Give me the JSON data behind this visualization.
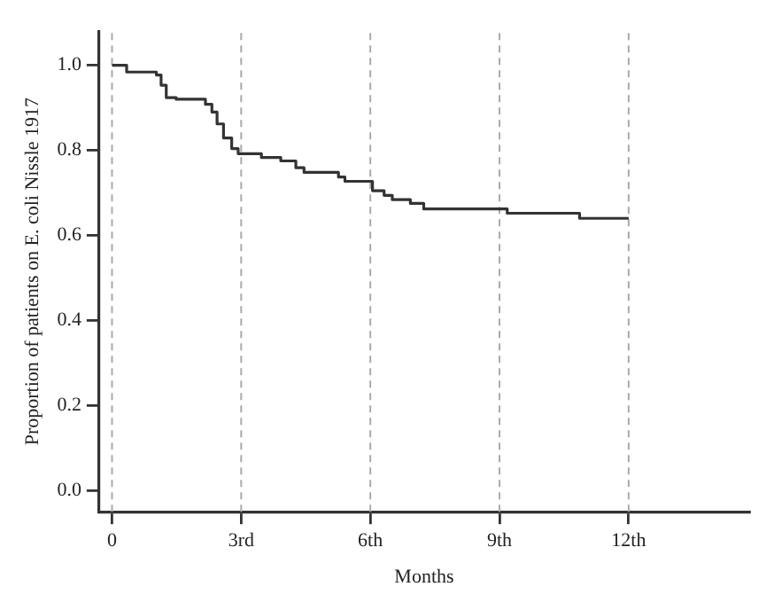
{
  "chart_data": {
    "type": "step",
    "xlabel": "Months",
    "ylabel": "Proportion of patients on E. coli Nissle 1917",
    "x": [
      0,
      0.34,
      1.03,
      1.14,
      1.26,
      1.49,
      2.17,
      2.32,
      2.44,
      2.59,
      2.78,
      2.93,
      3.47,
      3.92,
      4.27,
      4.46,
      5.26,
      5.41,
      6.05,
      6.32,
      6.51,
      6.93,
      7.24,
      9.18,
      10.86,
      12
    ],
    "series": [
      {
        "color": "#333333",
        "values": [
          1.0,
          0.984,
          0.977,
          0.953,
          0.924,
          0.92,
          0.908,
          0.89,
          0.862,
          0.829,
          0.804,
          0.792,
          0.783,
          0.775,
          0.759,
          0.748,
          0.737,
          0.727,
          0.705,
          0.694,
          0.684,
          0.675,
          0.662,
          0.652,
          0.64,
          0.64
        ]
      }
    ],
    "xlim": [
      -0.3,
      14.8
    ],
    "ylim": [
      -0.05,
      1.08
    ],
    "xticks": [
      {
        "value": 0,
        "label": "0"
      },
      {
        "value": 3,
        "label": "3rd"
      },
      {
        "value": 6,
        "label": "6th"
      },
      {
        "value": 9,
        "label": "9th"
      },
      {
        "value": 12,
        "label": "12th"
      }
    ],
    "yticks": [
      {
        "value": 0,
        "label": "0.0"
      },
      {
        "value": 0.2,
        "label": "0.2"
      },
      {
        "value": 0.4,
        "label": "0.4"
      },
      {
        "value": 0.6,
        "label": "0.6"
      },
      {
        "value": 0.8,
        "label": "0.8"
      },
      {
        "value": 1,
        "label": "1.0"
      }
    ],
    "ref_lines": [
      {
        "axis": "x",
        "value": 0,
        "color": "#aaaaaa",
        "line_style": "dashed"
      },
      {
        "axis": "x",
        "value": 3,
        "color": "#aaaaaa",
        "line_style": "dashed"
      },
      {
        "axis": "x",
        "value": 6,
        "color": "#aaaaaa",
        "line_style": "dashed"
      },
      {
        "axis": "x",
        "value": 9,
        "color": "#aaaaaa",
        "line_style": "dashed"
      },
      {
        "axis": "x",
        "value": 12,
        "color": "#aaaaaa",
        "line_style": "dashed"
      }
    ],
    "grid": false,
    "legend": false,
    "marker": "none",
    "line_style": "solid"
  }
}
